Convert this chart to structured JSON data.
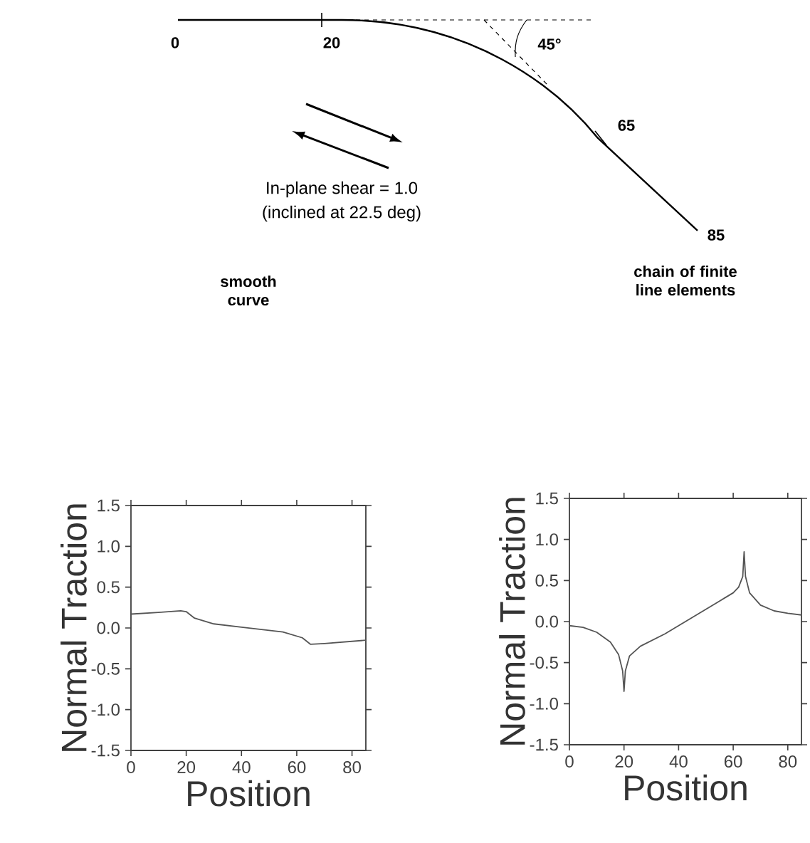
{
  "chart_data": [
    {
      "type": "other",
      "annotations": [
        "0",
        "20",
        "45°",
        "65",
        "85",
        "In-plane shear = 1.0",
        "(inclined at 22.5 deg)"
      ]
    },
    {
      "type": "line",
      "title": "smooth curve",
      "xlabel": "Position",
      "ylabel": "Normal Traction",
      "color": "#555555",
      "x": [
        0,
        10,
        18,
        20,
        23,
        30,
        40,
        55,
        62,
        65,
        70,
        85
      ],
      "values": [
        0.17,
        0.19,
        0.21,
        0.2,
        0.12,
        0.05,
        0.01,
        -0.05,
        -0.12,
        -0.2,
        -0.19,
        -0.15
      ],
      "xlim": [
        0,
        85
      ],
      "ylim": [
        -1.5,
        1.5
      ],
      "xticks": [
        0,
        20,
        40,
        60,
        80
      ],
      "yticks": [
        {
          "value": -1.5,
          "label": "-1.5"
        },
        {
          "value": -1,
          "label": "-1.0"
        },
        {
          "value": -0.5,
          "label": "-0.5"
        },
        {
          "value": 0,
          "label": "0.0"
        },
        {
          "value": 0.5,
          "label": "0.5"
        },
        {
          "value": 1,
          "label": "1.0"
        },
        {
          "value": 1.5,
          "label": "1.5"
        }
      ]
    },
    {
      "type": "line",
      "title": "chain of finite line elements",
      "xlabel": "Position",
      "ylabel": "Normal Traction",
      "color": "#555555",
      "x": [
        0,
        5,
        10,
        15,
        18,
        19.5,
        20,
        20.5,
        22,
        26,
        35,
        45,
        55,
        60,
        62,
        63.5,
        64,
        64.5,
        66,
        70,
        75,
        80,
        85
      ],
      "values": [
        -0.05,
        -0.07,
        -0.13,
        -0.25,
        -0.4,
        -0.6,
        -0.85,
        -0.6,
        -0.42,
        -0.3,
        -0.15,
        0.05,
        0.25,
        0.35,
        0.42,
        0.55,
        0.85,
        0.55,
        0.35,
        0.2,
        0.13,
        0.1,
        0.08
      ],
      "xlim": [
        0,
        85
      ],
      "ylim": [
        -1.5,
        1.5
      ],
      "xticks": [
        0,
        20,
        40,
        60,
        80
      ],
      "yticks": [
        {
          "value": -1.5,
          "label": "-1.5"
        },
        {
          "value": -1,
          "label": "-1.0"
        },
        {
          "value": -0.5,
          "label": "-0.5"
        },
        {
          "value": 0,
          "label": "0.0"
        },
        {
          "value": 0.5,
          "label": "0.5"
        },
        {
          "value": 1,
          "label": "1.0"
        },
        {
          "value": 1.5,
          "label": "1.5"
        }
      ]
    }
  ]
}
